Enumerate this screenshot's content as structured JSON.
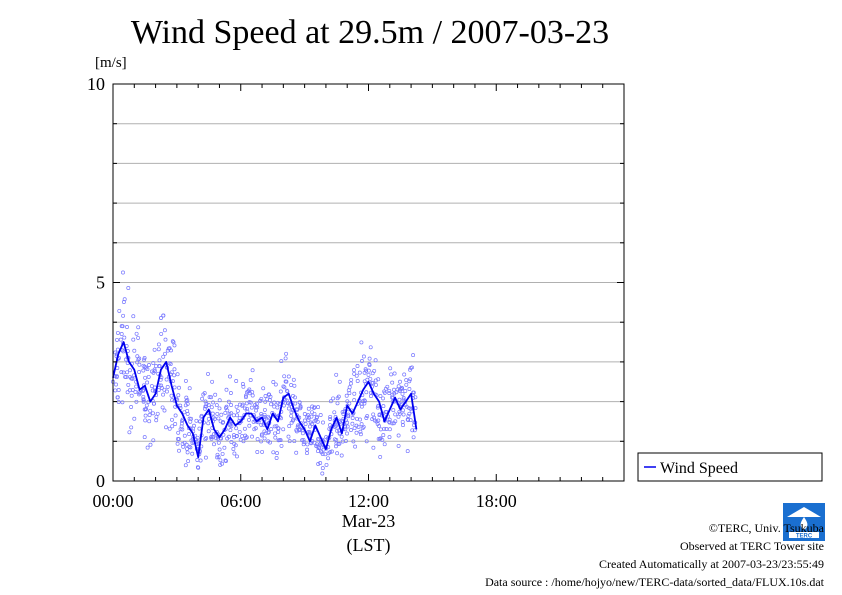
{
  "chart_data": {
    "type": "line",
    "title": "Wind Speed at 29.5m / 2007-03-23",
    "ylabel": "[m/s]",
    "xlabel_date": "Mar-23",
    "xlabel_tz": "(LST)",
    "x_unit": "hours",
    "xlim": [
      0,
      24
    ],
    "ylim": [
      0,
      10
    ],
    "grid": true,
    "legend_position": "right-bottom-outside",
    "x_ticks": [
      {
        "value": 0,
        "label": "00:00"
      },
      {
        "value": 6,
        "label": "06:00"
      },
      {
        "value": 12,
        "label": "12:00"
      },
      {
        "value": 18,
        "label": "18:00"
      }
    ],
    "y_ticks": [
      {
        "value": 0,
        "label": "0"
      },
      {
        "value": 5,
        "label": "5"
      },
      {
        "value": 10,
        "label": "10"
      }
    ],
    "series": [
      {
        "name": "Wind Speed",
        "color": "#0000ee",
        "scatter_color": "#7777ff",
        "x": [
          0.0,
          0.25,
          0.5,
          0.75,
          1.0,
          1.25,
          1.5,
          1.75,
          2.0,
          2.25,
          2.5,
          2.75,
          3.0,
          3.25,
          3.5,
          3.75,
          4.0,
          4.25,
          4.5,
          4.75,
          5.0,
          5.25,
          5.5,
          5.75,
          6.0,
          6.25,
          6.5,
          6.75,
          7.0,
          7.25,
          7.5,
          7.75,
          8.0,
          8.25,
          8.5,
          8.75,
          9.0,
          9.25,
          9.5,
          9.75,
          10.0,
          10.25,
          10.5,
          10.75,
          11.0,
          11.25,
          11.5,
          11.75,
          12.0,
          12.25,
          12.5,
          12.75,
          13.0,
          13.25,
          13.5,
          13.75,
          14.0,
          14.25
        ],
        "values": [
          2.6,
          3.2,
          3.5,
          3.0,
          2.8,
          2.3,
          2.4,
          2.0,
          2.2,
          2.8,
          3.0,
          2.4,
          1.9,
          1.7,
          1.4,
          1.2,
          0.6,
          1.6,
          1.8,
          1.3,
          1.1,
          1.3,
          1.6,
          1.4,
          1.5,
          1.7,
          1.7,
          1.5,
          1.6,
          1.3,
          1.7,
          1.5,
          2.1,
          2.2,
          1.8,
          1.5,
          1.3,
          1.0,
          1.4,
          1.1,
          0.8,
          1.3,
          1.6,
          1.2,
          1.9,
          1.7,
          2.0,
          2.3,
          2.5,
          2.2,
          2.0,
          1.5,
          1.8,
          2.1,
          1.8,
          2.0,
          2.2,
          1.3
        ]
      }
    ]
  },
  "credits": {
    "copyright": "©TERC, Univ. Tsukuba",
    "observed": "Observed at TERC Tower site",
    "created": "Created Automatically at 2007-03-23/23:55:49",
    "source": "Data source : /home/hojyo/new/TERC-data/sorted_data/FLUX.10s.dat"
  },
  "logo": {
    "text": "TERC",
    "color": "#1a6fd0"
  }
}
